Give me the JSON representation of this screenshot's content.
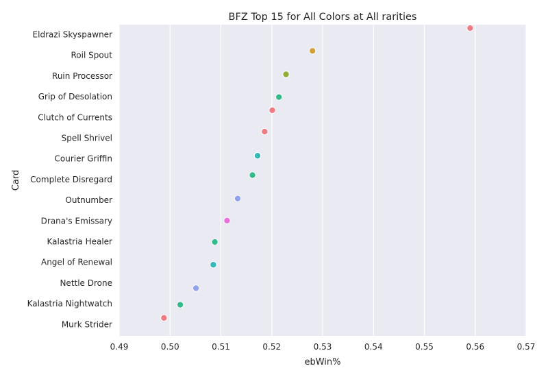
{
  "chart_data": {
    "type": "scatter",
    "title": "BFZ Top 15 for All Colors at All rarities",
    "xlabel": "ebWin%",
    "ylabel": "Card",
    "xlim": [
      0.49,
      0.57
    ],
    "xticks": [
      "0.49",
      "0.50",
      "0.51",
      "0.52",
      "0.53",
      "0.54",
      "0.55",
      "0.56",
      "0.57"
    ],
    "xtick_values": [
      0.49,
      0.5,
      0.51,
      0.52,
      0.53,
      0.54,
      0.55,
      0.56,
      0.57
    ],
    "grid": "vertical",
    "background": "#eaeaf2",
    "categories": [
      "Eldrazi Skyspawner",
      "Roil Spout",
      "Ruin Processor",
      "Grip of Desolation",
      "Clutch of Currents",
      "Spell Shrivel",
      "Courier Griffin",
      "Complete Disregard",
      "Outnumber",
      "Drana's Emissary",
      "Kalastria Healer",
      "Angel of Renewal",
      "Nettle Drone",
      "Kalastria Nightwatch",
      "Murk Strider"
    ],
    "points": [
      {
        "card": "Eldrazi Skyspawner",
        "x": 0.559,
        "color": "#f07a84"
      },
      {
        "card": "Roil Spout",
        "x": 0.528,
        "color": "#d1a039"
      },
      {
        "card": "Ruin Processor",
        "x": 0.5228,
        "color": "#92ac3c"
      },
      {
        "card": "Grip of Desolation",
        "x": 0.5214,
        "color": "#33b98a"
      },
      {
        "card": "Clutch of Currents",
        "x": 0.5201,
        "color": "#f07a84"
      },
      {
        "card": "Spell Shrivel",
        "x": 0.5186,
        "color": "#f07a84"
      },
      {
        "card": "Courier Griffin",
        "x": 0.5172,
        "color": "#35b7b8"
      },
      {
        "card": "Complete Disregard",
        "x": 0.5162,
        "color": "#33b98a"
      },
      {
        "card": "Outnumber",
        "x": 0.5133,
        "color": "#8fa0ec"
      },
      {
        "card": "Drana's Emissary",
        "x": 0.5112,
        "color": "#e870dc"
      },
      {
        "card": "Kalastria Healer",
        "x": 0.5088,
        "color": "#33b98a"
      },
      {
        "card": "Angel of Renewal",
        "x": 0.5085,
        "color": "#35b7b8"
      },
      {
        "card": "Nettle Drone",
        "x": 0.5051,
        "color": "#8fa0ec"
      },
      {
        "card": "Kalastria Nightwatch",
        "x": 0.502,
        "color": "#33b98a"
      },
      {
        "card": "Murk Strider",
        "x": 0.4988,
        "color": "#f07a84"
      }
    ]
  }
}
